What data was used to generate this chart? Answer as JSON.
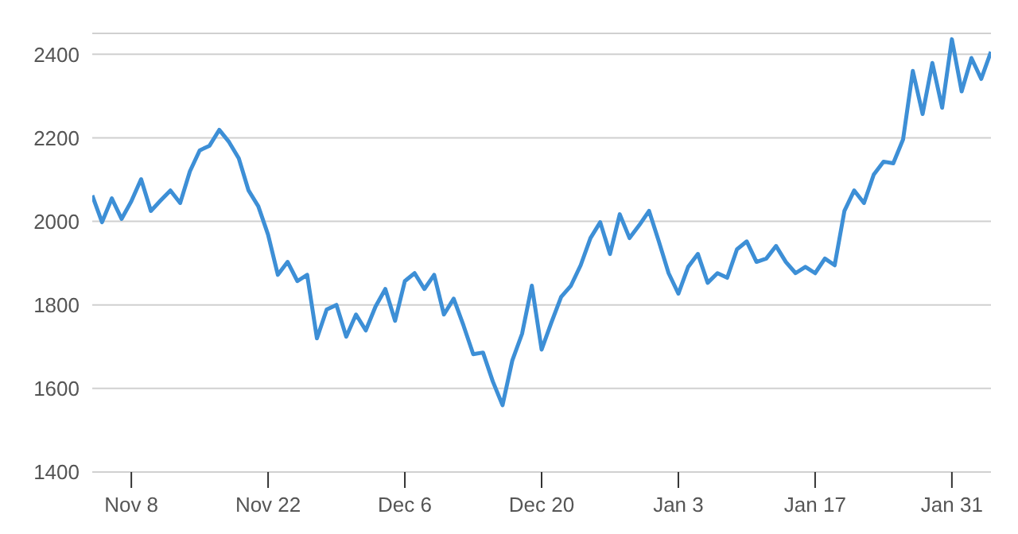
{
  "chart_data": {
    "type": "line",
    "categories": [
      null,
      null,
      null,
      null,
      "Nov 8",
      null,
      null,
      null,
      null,
      null,
      null,
      null,
      null,
      null,
      null,
      null,
      null,
      null,
      "Nov 22",
      null,
      null,
      null,
      null,
      null,
      null,
      null,
      null,
      null,
      null,
      null,
      null,
      null,
      "Dec 6",
      null,
      null,
      null,
      null,
      null,
      null,
      null,
      null,
      null,
      null,
      null,
      null,
      null,
      "Dec 20",
      null,
      null,
      null,
      null,
      null,
      null,
      null,
      null,
      null,
      null,
      null,
      null,
      null,
      "Jan 3",
      null,
      null,
      null,
      null,
      null,
      null,
      null,
      null,
      null,
      null,
      null,
      null,
      null,
      "Jan 17",
      null,
      null,
      null,
      null,
      null,
      null,
      null,
      null,
      null,
      null,
      null,
      null,
      null,
      "Jan 31",
      null,
      null,
      null,
      null
    ],
    "series": [
      {
        "color": "#3d8fd6",
        "values": [
          2062,
          1998,
          2055,
          2006,
          2048,
          2101,
          2025,
          2050,
          2074,
          2044,
          2120,
          2170,
          2181,
          2219,
          2190,
          2151,
          2074,
          2036,
          1968,
          1872,
          1903,
          1857,
          1872,
          1720,
          1789,
          1800,
          1724,
          1777,
          1739,
          1796,
          1838,
          1762,
          1857,
          1876,
          1838,
          1872,
          1777,
          1815,
          1751,
          1682,
          1686,
          1617,
          1560,
          1667,
          1731,
          1846,
          1693,
          1758,
          1819,
          1846,
          1895,
          1960,
          1998,
          1922,
          2017,
          1960,
          1991,
          2025,
          1952,
          1876,
          1827,
          1891,
          1922,
          1853,
          1876,
          1865,
          1933,
          1952,
          1903,
          1911,
          1941,
          1903,
          1876,
          1891,
          1876,
          1911,
          1895,
          2025,
          2074,
          2044,
          2112,
          2143,
          2139,
          2196,
          2360,
          2257,
          2379,
          2272,
          2436,
          2311,
          2391,
          2341,
          2406
        ]
      }
    ],
    "ylim": [
      1400,
      2450
    ],
    "yticks": [
      1400,
      1600,
      1800,
      2000,
      2200,
      2400
    ],
    "grid": "y",
    "legend": false,
    "marker": "none",
    "line_style": "solid"
  }
}
